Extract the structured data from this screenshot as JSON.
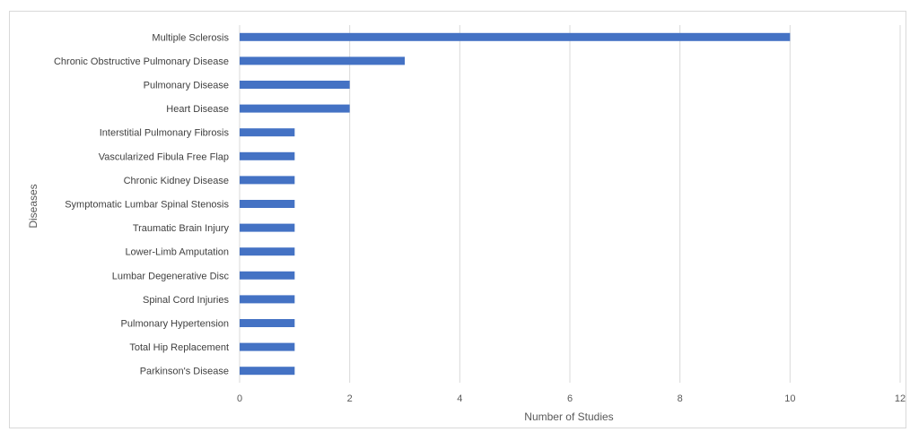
{
  "chart_data": {
    "type": "bar",
    "orientation": "horizontal",
    "categories": [
      "Multiple Sclerosis",
      "Chronic Obstructive Pulmonary Disease",
      "Pulmonary Disease",
      "Heart Disease",
      "Interstitial Pulmonary Fibrosis",
      "Vascularized Fibula Free Flap",
      "Chronic Kidney Disease",
      "Symptomatic Lumbar Spinal Stenosis",
      "Traumatic Brain Injury",
      "Lower-Limb Amputation",
      "Lumbar Degenerative Disc",
      "Spinal Cord Injuries",
      "Pulmonary Hypertension",
      "Total Hip Replacement",
      "Parkinson's Disease"
    ],
    "values": [
      10,
      3,
      2,
      2,
      1,
      1,
      1,
      1,
      1,
      1,
      1,
      1,
      1,
      1,
      1
    ],
    "xlabel": "Number of Studies",
    "ylabel": "Diseases",
    "xlim": [
      0,
      12
    ],
    "xticks": [
      0,
      2,
      4,
      6,
      8,
      10,
      12
    ],
    "grid": "vertical",
    "bar_color": "#4472C4",
    "grid_color": "#d9d9d9",
    "legend": "none"
  }
}
